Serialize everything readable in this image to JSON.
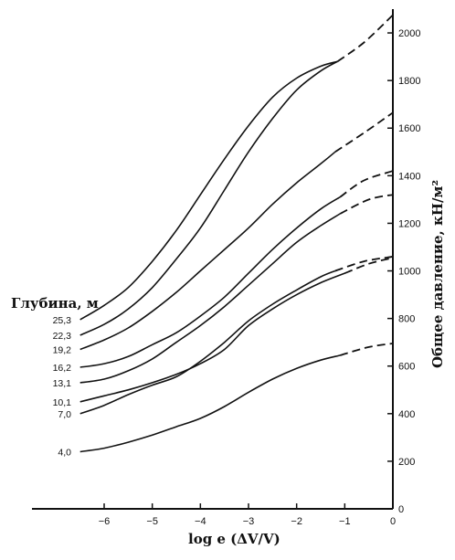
{
  "chart_data": {
    "type": "line",
    "title": "",
    "xlabel": "log e (ΔV/V)",
    "ylabel": "Общее давление, кН/м²",
    "series_title": "Глубина, м",
    "xlim": [
      -7.5,
      0
    ],
    "ylim": [
      0,
      2100
    ],
    "x_ticks": [
      -6,
      -5,
      -4,
      -3,
      -2,
      -1,
      0
    ],
    "x_tick_labels": [
      "−6",
      "−5",
      "−4",
      "−3",
      "−2",
      "−1",
      "0"
    ],
    "y_ticks": [
      0,
      200,
      400,
      600,
      800,
      1000,
      1200,
      1400,
      1600,
      1800,
      2000
    ],
    "y_tick_labels": [
      "0",
      "200",
      "400",
      "600",
      "800",
      "1000",
      "1200",
      "1400",
      "1600",
      "1800",
      "2000"
    ],
    "y_axis_side": "right",
    "series": [
      {
        "name": "25,3",
        "points": [
          [
            -6.5,
            795
          ],
          [
            -6.0,
            855
          ],
          [
            -5.5,
            930
          ],
          [
            -5.0,
            1040
          ],
          [
            -4.5,
            1170
          ],
          [
            -4.0,
            1320
          ],
          [
            -3.5,
            1470
          ],
          [
            -3.0,
            1610
          ],
          [
            -2.5,
            1730
          ],
          [
            -2.0,
            1810
          ],
          [
            -1.5,
            1860
          ],
          [
            -1.15,
            1880
          ]
        ],
        "extrap": [
          [
            -1.15,
            1880
          ],
          [
            -0.6,
            1960
          ],
          [
            0,
            2075
          ]
        ]
      },
      {
        "name": "22,3",
        "points": [
          [
            -6.5,
            730
          ],
          [
            -6.0,
            775
          ],
          [
            -5.5,
            840
          ],
          [
            -5.0,
            930
          ],
          [
            -4.5,
            1050
          ],
          [
            -4.0,
            1180
          ],
          [
            -3.5,
            1340
          ],
          [
            -3.0,
            1500
          ],
          [
            -2.5,
            1640
          ],
          [
            -2.0,
            1760
          ],
          [
            -1.5,
            1840
          ],
          [
            -1.15,
            1880
          ]
        ],
        "extrap": []
      },
      {
        "name": "19,2",
        "points": [
          [
            -6.5,
            670
          ],
          [
            -6.0,
            710
          ],
          [
            -5.5,
            760
          ],
          [
            -5.0,
            830
          ],
          [
            -4.5,
            910
          ],
          [
            -4.0,
            1000
          ],
          [
            -3.5,
            1090
          ],
          [
            -3.0,
            1180
          ],
          [
            -2.5,
            1280
          ],
          [
            -2.0,
            1370
          ],
          [
            -1.5,
            1450
          ],
          [
            -1.2,
            1500
          ]
        ],
        "extrap": [
          [
            -1.2,
            1500
          ],
          [
            -0.6,
            1580
          ],
          [
            0,
            1665
          ]
        ]
      },
      {
        "name": "16,2",
        "points": [
          [
            -6.5,
            595
          ],
          [
            -6.0,
            610
          ],
          [
            -5.5,
            640
          ],
          [
            -5.0,
            690
          ],
          [
            -4.5,
            740
          ],
          [
            -4.0,
            810
          ],
          [
            -3.5,
            890
          ],
          [
            -3.0,
            990
          ],
          [
            -2.5,
            1090
          ],
          [
            -2.0,
            1180
          ],
          [
            -1.5,
            1260
          ],
          [
            -1.1,
            1310
          ]
        ],
        "extrap": [
          [
            -1.1,
            1310
          ],
          [
            -0.6,
            1380
          ],
          [
            0,
            1420
          ]
        ]
      },
      {
        "name": "13,1",
        "points": [
          [
            -6.5,
            530
          ],
          [
            -6.0,
            545
          ],
          [
            -5.5,
            580
          ],
          [
            -5.0,
            630
          ],
          [
            -4.5,
            700
          ],
          [
            -4.0,
            770
          ],
          [
            -3.5,
            850
          ],
          [
            -3.0,
            940
          ],
          [
            -2.5,
            1030
          ],
          [
            -2.0,
            1120
          ],
          [
            -1.5,
            1190
          ],
          [
            -1.1,
            1240
          ]
        ],
        "extrap": [
          [
            -1.1,
            1240
          ],
          [
            -0.5,
            1300
          ],
          [
            0,
            1320
          ]
        ]
      },
      {
        "name": "10,1",
        "points": [
          [
            -6.5,
            450
          ],
          [
            -6.0,
            475
          ],
          [
            -5.5,
            500
          ],
          [
            -5.0,
            530
          ],
          [
            -4.5,
            565
          ],
          [
            -4.0,
            610
          ],
          [
            -3.5,
            670
          ],
          [
            -3.0,
            770
          ],
          [
            -2.5,
            840
          ],
          [
            -2.0,
            900
          ],
          [
            -1.5,
            950
          ],
          [
            -1.0,
            990
          ]
        ],
        "extrap": [
          [
            -1.0,
            990
          ],
          [
            -0.5,
            1030
          ],
          [
            0,
            1055
          ]
        ]
      },
      {
        "name": "7,0",
        "points": [
          [
            -6.5,
            400
          ],
          [
            -6.0,
            435
          ],
          [
            -5.5,
            480
          ],
          [
            -5.0,
            520
          ],
          [
            -4.5,
            555
          ],
          [
            -4.0,
            620
          ],
          [
            -3.5,
            700
          ],
          [
            -3.0,
            790
          ],
          [
            -2.5,
            860
          ],
          [
            -2.0,
            920
          ],
          [
            -1.5,
            975
          ],
          [
            -1.2,
            1000
          ]
        ],
        "extrap": [
          [
            -1.2,
            1000
          ],
          [
            -0.6,
            1040
          ],
          [
            0,
            1060
          ]
        ]
      },
      {
        "name": "4,0",
        "points": [
          [
            -6.5,
            240
          ],
          [
            -6.0,
            255
          ],
          [
            -5.5,
            280
          ],
          [
            -5.0,
            310
          ],
          [
            -4.5,
            345
          ],
          [
            -4.0,
            380
          ],
          [
            -3.5,
            430
          ],
          [
            -3.0,
            490
          ],
          [
            -2.5,
            545
          ],
          [
            -2.0,
            590
          ],
          [
            -1.5,
            625
          ],
          [
            -1.1,
            645
          ]
        ],
        "extrap": [
          [
            -1.1,
            645
          ],
          [
            -0.5,
            680
          ],
          [
            0,
            695
          ]
        ]
      }
    ]
  }
}
